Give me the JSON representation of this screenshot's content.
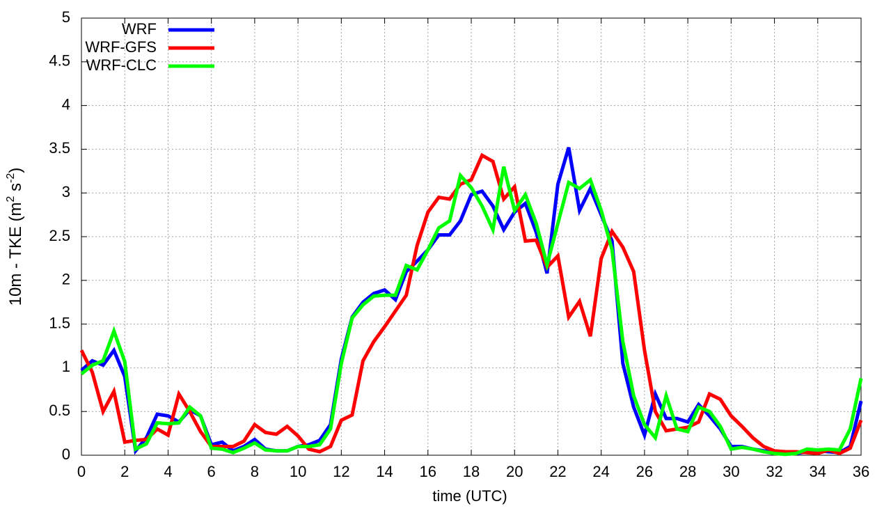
{
  "chart_data": {
    "type": "line",
    "x_label": "time (UTC)",
    "y_label": [
      "10m - TKE (m",
      "2",
      " s",
      "-2",
      ")"
    ],
    "x": [
      0,
      0.5,
      1,
      1.5,
      2,
      2.5,
      3,
      3.5,
      4,
      4.5,
      5,
      5.5,
      6,
      6.5,
      7,
      7.5,
      8,
      8.5,
      9,
      9.5,
      10,
      10.5,
      11,
      11.5,
      12,
      12.5,
      13,
      13.5,
      14,
      14.5,
      15,
      15.5,
      16,
      16.5,
      17,
      17.5,
      18,
      18.5,
      19,
      19.5,
      20,
      20.5,
      21,
      21.5,
      22,
      22.5,
      23,
      23.5,
      24,
      24.5,
      25,
      25.5,
      26,
      26.5,
      27,
      27.5,
      28,
      28.5,
      29,
      29.5,
      30,
      30.5,
      31,
      31.5,
      32,
      32.5,
      33,
      33.5,
      34,
      34.5,
      35,
      35.5,
      36
    ],
    "series": [
      {
        "name": "WRF",
        "color": "#0000ff",
        "values": [
          0.97,
          1.08,
          1.03,
          1.2,
          0.9,
          0.05,
          0.2,
          0.47,
          0.45,
          0.38,
          0.52,
          0.45,
          0.12,
          0.15,
          0.05,
          0.1,
          0.18,
          0.07,
          0.05,
          0.05,
          0.1,
          0.12,
          0.17,
          0.35,
          1.1,
          1.58,
          1.75,
          1.85,
          1.89,
          1.78,
          2.1,
          2.22,
          2.35,
          2.52,
          2.52,
          2.68,
          2.98,
          3.02,
          2.85,
          2.58,
          2.78,
          2.88,
          2.55,
          2.08,
          3.1,
          3.52,
          2.8,
          3.05,
          2.75,
          2.45,
          1.05,
          0.55,
          0.23,
          0.7,
          0.42,
          0.42,
          0.38,
          0.58,
          0.45,
          0.3,
          0.1,
          0.1,
          0.07,
          0.05,
          0.04,
          0.03,
          0.02,
          0.04,
          0.05,
          0.04,
          0.03,
          0.1,
          0.62
        ]
      },
      {
        "name": "WRF-GFS",
        "color": "#ff0000",
        "values": [
          1.2,
          0.95,
          0.5,
          0.73,
          0.15,
          0.17,
          0.18,
          0.3,
          0.23,
          0.7,
          0.5,
          0.27,
          0.1,
          0.1,
          0.1,
          0.16,
          0.35,
          0.26,
          0.24,
          0.33,
          0.22,
          0.07,
          0.04,
          0.1,
          0.4,
          0.46,
          1.08,
          1.3,
          1.47,
          1.65,
          1.83,
          2.4,
          2.78,
          2.95,
          2.93,
          3.1,
          3.15,
          3.43,
          3.36,
          2.93,
          3.07,
          2.45,
          2.46,
          2.15,
          2.28,
          1.58,
          1.76,
          1.36,
          2.25,
          2.56,
          2.38,
          2.1,
          1.2,
          0.5,
          0.28,
          0.3,
          0.32,
          0.38,
          0.7,
          0.64,
          0.45,
          0.33,
          0.2,
          0.1,
          0.05,
          0.04,
          0.04,
          0.03,
          0.02,
          0.06,
          0.02,
          0.08,
          0.4
        ]
      },
      {
        "name": "WRF-CLC",
        "color": "#00ff00",
        "values": [
          0.93,
          1.03,
          1.08,
          1.42,
          1.07,
          0.07,
          0.13,
          0.37,
          0.36,
          0.37,
          0.55,
          0.45,
          0.08,
          0.07,
          0.03,
          0.08,
          0.14,
          0.06,
          0.05,
          0.05,
          0.1,
          0.1,
          0.12,
          0.3,
          1.05,
          1.57,
          1.72,
          1.82,
          1.83,
          1.83,
          2.17,
          2.12,
          2.35,
          2.6,
          2.68,
          3.2,
          3.06,
          2.85,
          2.58,
          3.3,
          2.8,
          2.98,
          2.65,
          2.18,
          2.65,
          3.12,
          3.05,
          3.15,
          2.8,
          2.35,
          1.3,
          0.68,
          0.35,
          0.2,
          0.68,
          0.3,
          0.27,
          0.55,
          0.5,
          0.33,
          0.07,
          0.09,
          0.07,
          0.04,
          0.02,
          0.01,
          0.02,
          0.07,
          0.06,
          0.07,
          0.06,
          0.3,
          0.88
        ]
      }
    ],
    "xlim": [
      0,
      36
    ],
    "xticks": [
      0,
      2,
      4,
      6,
      8,
      10,
      12,
      14,
      16,
      18,
      20,
      22,
      24,
      26,
      28,
      30,
      32,
      34,
      36
    ],
    "ylim": [
      0,
      5
    ],
    "yticks": [
      0,
      0.5,
      1,
      1.5,
      2,
      2.5,
      3,
      3.5,
      4,
      4.5,
      5
    ],
    "grid": true,
    "legend": "top-left"
  }
}
